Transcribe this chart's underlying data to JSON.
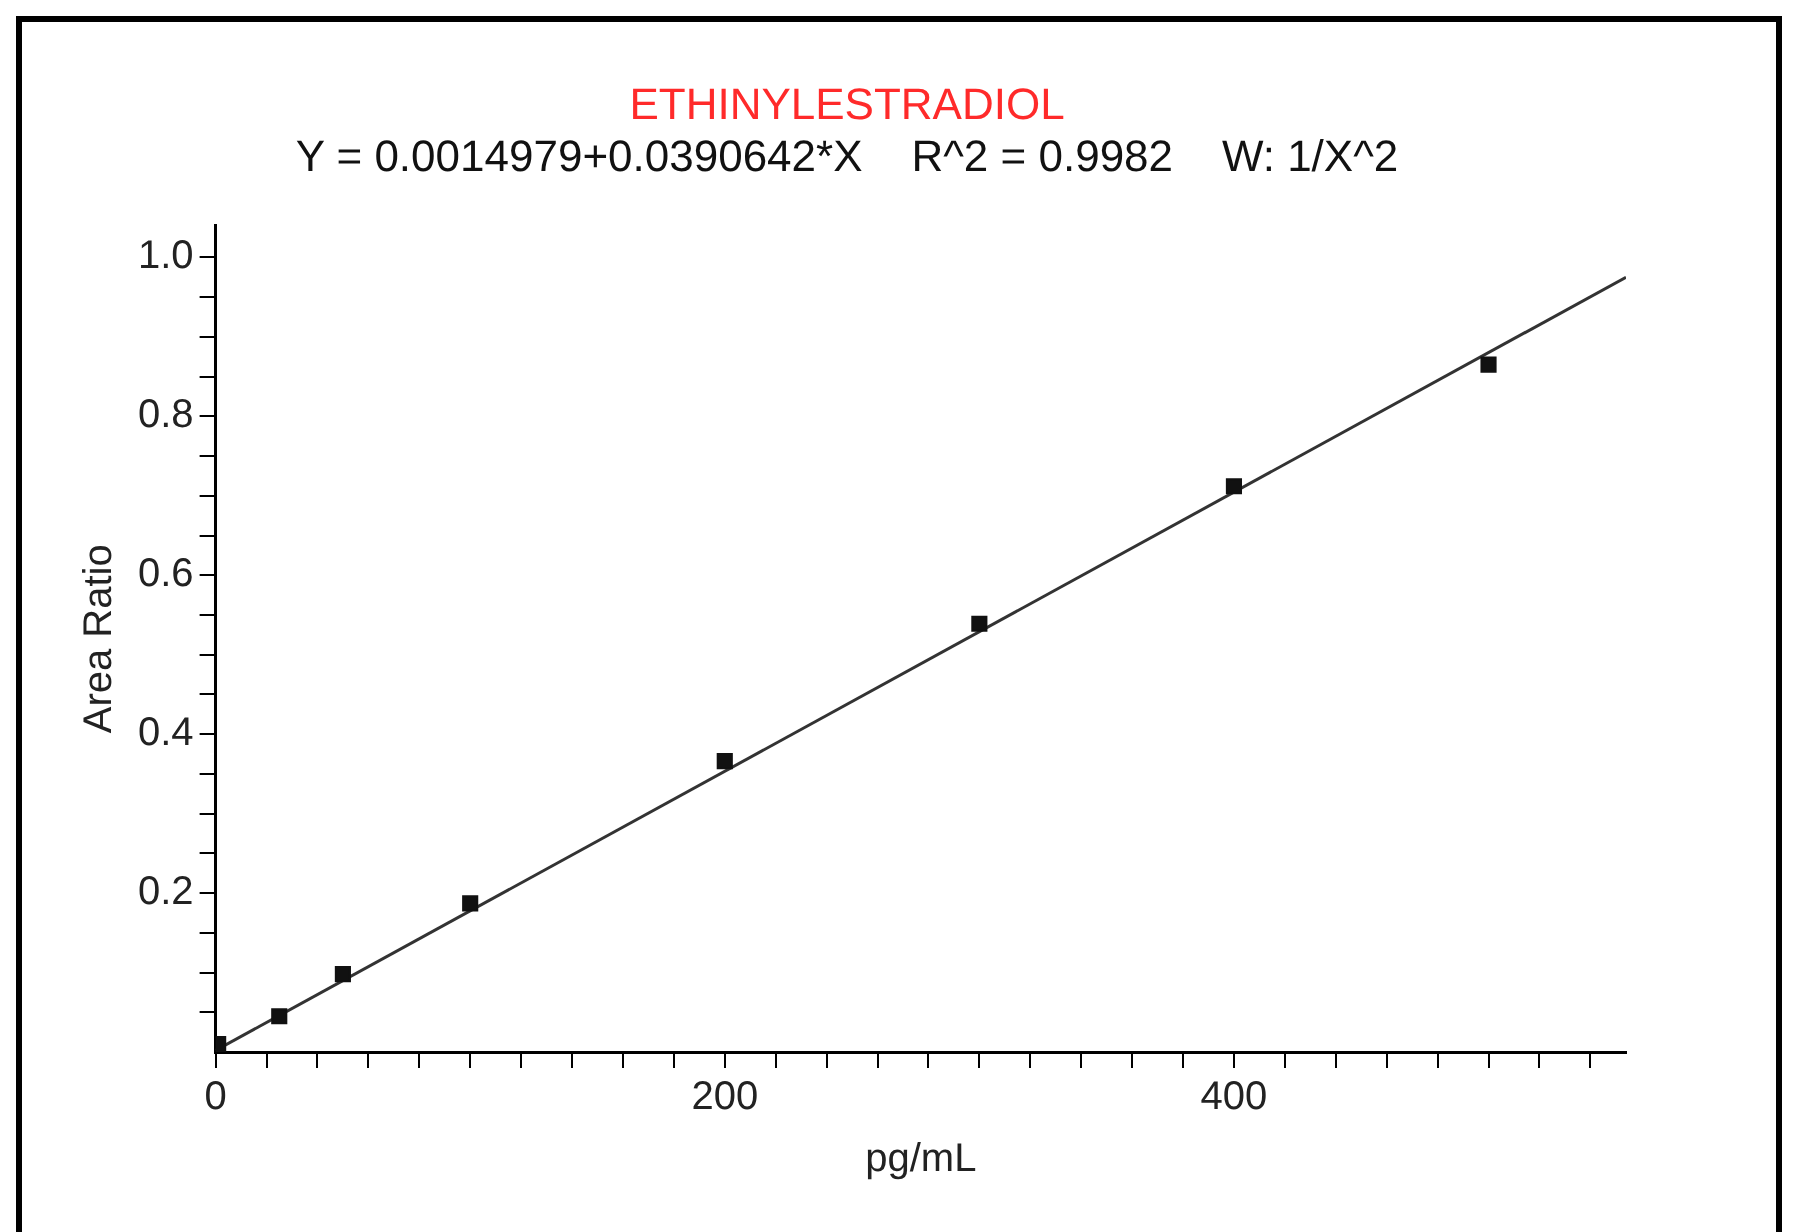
{
  "chart_data": {
    "type": "scatter",
    "title": "ETHINYLESTRADIOL",
    "subtitle": "Y = 0.0014979+0.0390642*X    R^2 = 0.9982    W: 1/X^2",
    "xlabel": "pg/mL",
    "ylabel": "Area Ratio",
    "x": [
      1,
      25,
      50,
      100,
      200,
      300,
      400,
      500
    ],
    "series": [
      {
        "color": "#111111",
        "marker": "square",
        "values": [
          0.01,
          0.045,
          0.098,
          0.187,
          0.366,
          0.539,
          0.712,
          0.865
        ]
      },
      {
        "type": "line",
        "color": "#333333",
        "marker": "none",
        "line_style": "solid",
        "x": [
          0,
          554
        ],
        "values": [
          0.002,
          0.975
        ]
      }
    ],
    "xlim": [
      0,
      554
    ],
    "ylim": [
      0,
      1.04
    ],
    "xticks": [
      0,
      {
        "value": 20,
        "label": null
      },
      {
        "value": 40,
        "label": null
      },
      {
        "value": 60,
        "label": null
      },
      {
        "value": 80,
        "label": null
      },
      {
        "value": 100,
        "label": null
      },
      {
        "value": 120,
        "label": null
      },
      {
        "value": 140,
        "label": null
      },
      {
        "value": 160,
        "label": null
      },
      {
        "value": 180,
        "label": null
      },
      200,
      {
        "value": 220,
        "label": null
      },
      {
        "value": 240,
        "label": null
      },
      {
        "value": 260,
        "label": null
      },
      {
        "value": 280,
        "label": null
      },
      {
        "value": 300,
        "label": null
      },
      {
        "value": 320,
        "label": null
      },
      {
        "value": 340,
        "label": null
      },
      {
        "value": 360,
        "label": null
      },
      {
        "value": 380,
        "label": null
      },
      400,
      {
        "value": 420,
        "label": null
      },
      {
        "value": 440,
        "label": null
      },
      {
        "value": 460,
        "label": null
      },
      {
        "value": 480,
        "label": null
      },
      {
        "value": 500,
        "label": null
      },
      {
        "value": 520,
        "label": null
      },
      {
        "value": 540,
        "label": null
      }
    ],
    "yticks": [
      {
        "value": 0.05,
        "label": null
      },
      {
        "value": 0.1,
        "label": null
      },
      {
        "value": 0.15,
        "label": null
      },
      {
        "value": 0.2,
        "label": "0.2"
      },
      {
        "value": 0.25,
        "label": null
      },
      {
        "value": 0.3,
        "label": null
      },
      {
        "value": 0.35,
        "label": null
      },
      {
        "value": 0.4,
        "label": "0.4"
      },
      {
        "value": 0.45,
        "label": null
      },
      {
        "value": 0.5,
        "label": null
      },
      {
        "value": 0.55,
        "label": null
      },
      {
        "value": 0.6,
        "label": "0.6"
      },
      {
        "value": 0.65,
        "label": null
      },
      {
        "value": 0.7,
        "label": null
      },
      {
        "value": 0.75,
        "label": null
      },
      {
        "value": 0.8,
        "label": "0.8"
      },
      {
        "value": 0.85,
        "label": null
      },
      {
        "value": 0.9,
        "label": null
      },
      {
        "value": 0.95,
        "label": null
      },
      {
        "value": 1.0,
        "label": "1.0"
      }
    ],
    "grid": false,
    "legend": false
  }
}
